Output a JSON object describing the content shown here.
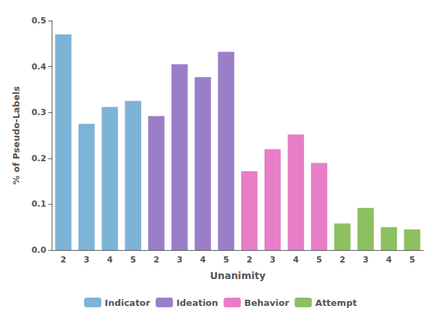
{
  "chart_data": {
    "type": "bar",
    "xlabel": "Unanimity",
    "ylabel": "% of Pseudo-Labels",
    "categories": [
      2,
      3,
      4,
      5,
      2,
      3,
      4,
      5,
      2,
      3,
      4,
      5,
      2,
      3,
      4,
      5
    ],
    "series": [
      {
        "name": "Indicator",
        "color": "#7EB3D8",
        "values": [
          0.47,
          0.275,
          0.312,
          0.325,
          null,
          null,
          null,
          null,
          null,
          null,
          null,
          null,
          null,
          null,
          null,
          null
        ]
      },
      {
        "name": "Ideation",
        "color": "#9B7EC8",
        "values": [
          null,
          null,
          null,
          null,
          0.292,
          0.405,
          0.377,
          0.432,
          null,
          null,
          null,
          null,
          null,
          null,
          null,
          null
        ]
      },
      {
        "name": "Behavior",
        "color": "#E87DC8",
        "values": [
          null,
          null,
          null,
          null,
          null,
          null,
          null,
          null,
          0.172,
          0.22,
          0.252,
          0.19,
          null,
          null,
          null,
          null
        ]
      },
      {
        "name": "Attempt",
        "color": "#8DC060",
        "values": [
          null,
          null,
          null,
          null,
          null,
          null,
          null,
          null,
          null,
          null,
          null,
          null,
          0.058,
          0.092,
          0.05,
          0.045
        ]
      }
    ],
    "ylim": [
      0.0,
      0.5
    ],
    "yticks": [
      {
        "value": 0.0,
        "label": "0.0"
      },
      0.1,
      0.2,
      0.3,
      0.4,
      0.5
    ],
    "grid": false,
    "legend": "bottom"
  }
}
